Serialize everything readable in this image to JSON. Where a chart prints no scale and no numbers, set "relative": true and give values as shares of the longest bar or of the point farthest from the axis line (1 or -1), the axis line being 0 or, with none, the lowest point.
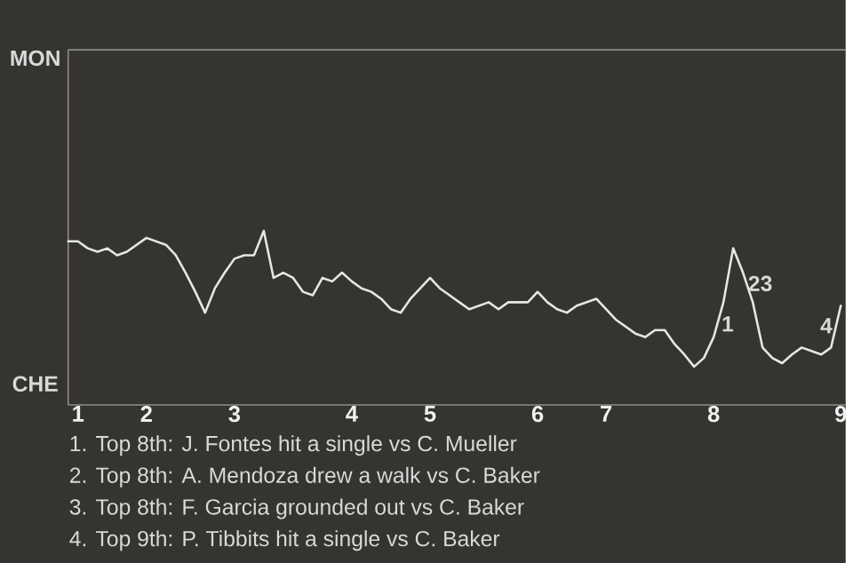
{
  "chart_data": {
    "type": "line",
    "color": "#e6e6e6",
    "relative": true,
    "categories": [
      null,
      "1",
      null,
      null,
      null,
      null,
      null,
      null,
      "2",
      null,
      null,
      null,
      null,
      null,
      null,
      null,
      null,
      "3",
      null,
      null,
      null,
      null,
      null,
      null,
      null,
      null,
      null,
      null,
      null,
      "4",
      null,
      null,
      null,
      null,
      null,
      null,
      null,
      "5",
      null,
      null,
      null,
      null,
      null,
      null,
      null,
      null,
      null,
      null,
      "6",
      null,
      null,
      null,
      null,
      null,
      null,
      "7",
      null,
      null,
      null,
      null,
      null,
      null,
      null,
      null,
      null,
      null,
      "8",
      null,
      null,
      null,
      null,
      null,
      null,
      null,
      null,
      null,
      null,
      null,
      null,
      "9"
    ],
    "values": [
      0.94,
      0.94,
      0.9,
      0.88,
      0.9,
      0.86,
      0.88,
      0.92,
      0.96,
      0.94,
      0.92,
      0.86,
      0.76,
      0.65,
      0.53,
      0.67,
      0.76,
      0.84,
      0.86,
      0.86,
      1,
      0.73,
      0.76,
      0.73,
      0.65,
      0.63,
      0.73,
      0.71,
      0.76,
      0.71,
      0.67,
      0.65,
      0.61,
      0.55,
      0.53,
      0.61,
      0.67,
      0.73,
      0.67,
      0.63,
      0.59,
      0.55,
      0.57,
      0.59,
      0.55,
      0.59,
      0.59,
      0.59,
      0.65,
      0.59,
      0.55,
      0.53,
      0.57,
      0.59,
      0.61,
      0.55,
      0.49,
      0.45,
      0.41,
      0.39,
      0.43,
      0.43,
      0.35,
      0.29,
      0.22,
      0.27,
      0.39,
      0.59,
      0.9,
      0.76,
      0.59,
      0.33,
      0.27,
      0.24,
      0.29,
      0.33,
      0.31,
      0.29,
      0.33,
      0.57
    ],
    "annotations": [
      "MON",
      "2",
      "3",
      "1",
      "4",
      "CHE",
      "1. Top 8th: J. Fontes hit a single vs C. Mueller",
      "2. Top 8th: A. Mendoza drew a walk vs C. Baker",
      "3. Top 8th: F. Garcia grounded out vs C. Baker",
      "4. Top 9th: P. Tibbits hit a single vs C. Baker"
    ]
  }
}
